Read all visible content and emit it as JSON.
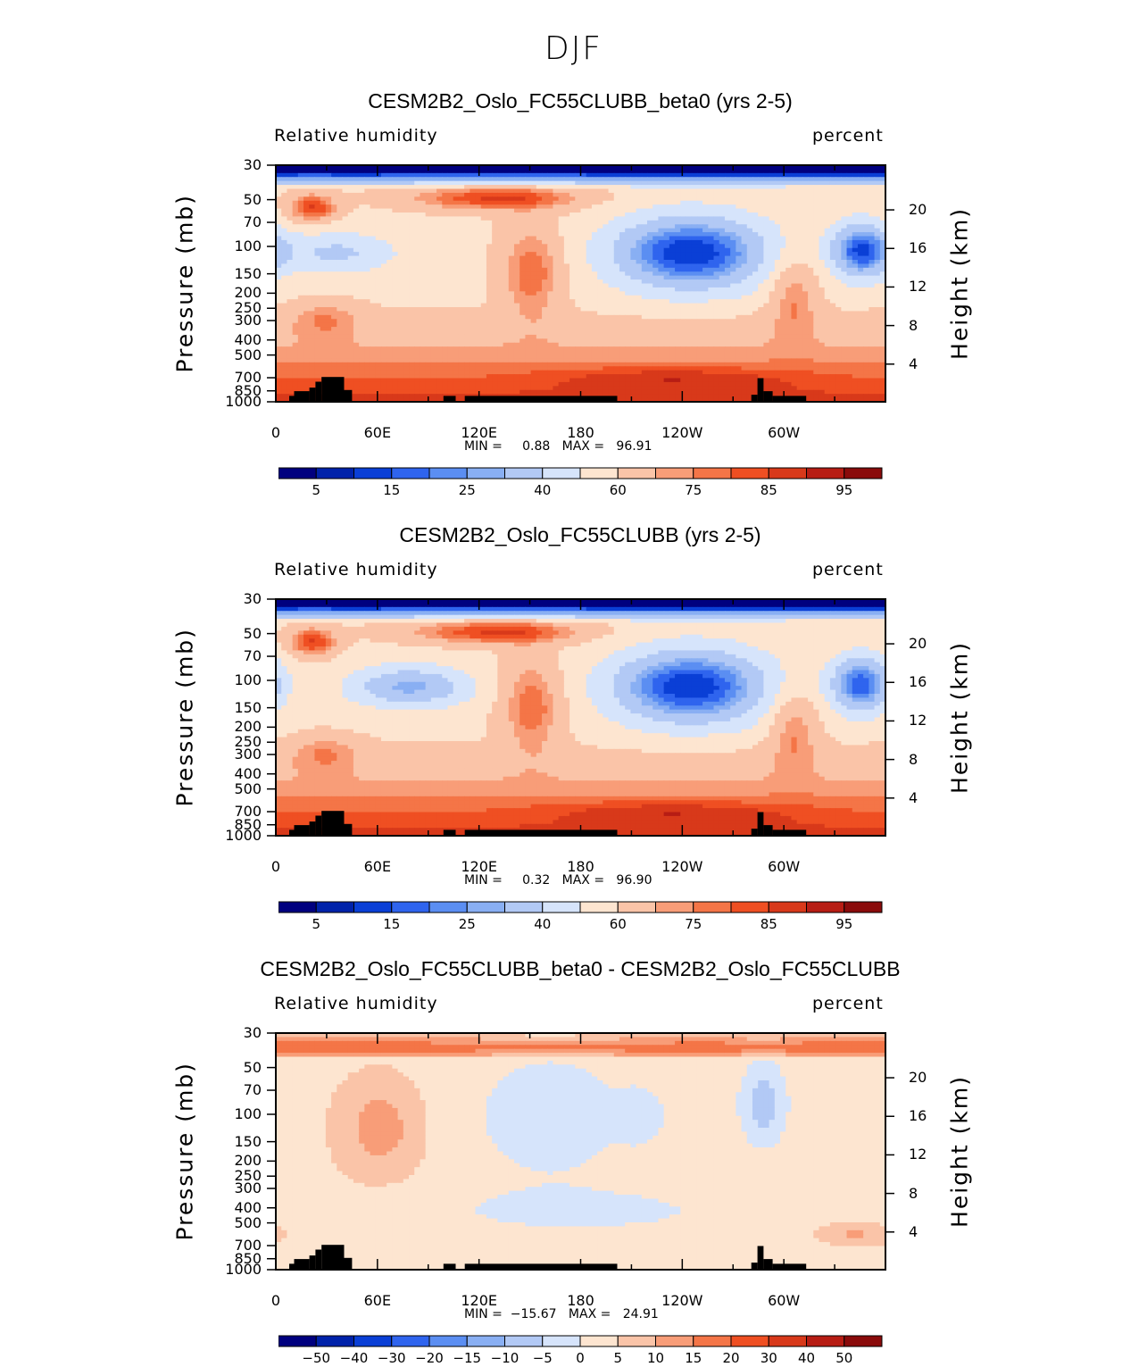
{
  "figure": {
    "title": "DJF"
  },
  "colors": {
    "blues": [
      "#00007f",
      "#0022aa",
      "#0a3fd6",
      "#2f64ee",
      "#5b8ef2",
      "#89aff3",
      "#b2c9f5",
      "#d6e4fb"
    ],
    "reds": [
      "#fde5d0",
      "#fac4a8",
      "#f89d78",
      "#f47547",
      "#ef4f22",
      "#d8391a",
      "#b71d14",
      "#8a0b0b"
    ],
    "topography": "#000000"
  },
  "chart_data": [
    {
      "type": "contour",
      "title": "CESM2B2_Oslo_FC55CLUBB_beta0 (yrs 2-5)",
      "left_label": "Relative humidity",
      "right_label": "percent",
      "ylabel": "Pressure (mb)",
      "y2label": "Height (km)",
      "pressure_levels": [
        "30",
        "50",
        "70",
        "100",
        "150",
        "200",
        "250",
        "300",
        "400",
        "500",
        "700",
        "850",
        "1000"
      ],
      "height_levels": [
        "20",
        "16",
        "12",
        "8",
        "4"
      ],
      "x_ticklabels": [
        "0",
        "60E",
        "120E",
        "180",
        "120W",
        "60W"
      ],
      "min_text": "MIN =     0.88   MAX =   96.91",
      "colorbar_labels": [
        "5",
        "15",
        "25",
        "40",
        "60",
        "75",
        "85",
        "95"
      ],
      "colorbar_levels": [
        5,
        10,
        15,
        20,
        25,
        30,
        40,
        50,
        60,
        70,
        75,
        80,
        85,
        90,
        95
      ],
      "min": 0.88,
      "max": 96.91
    },
    {
      "type": "contour",
      "title": "CESM2B2_Oslo_FC55CLUBB (yrs 2-5)",
      "left_label": "Relative humidity",
      "right_label": "percent",
      "ylabel": "Pressure (mb)",
      "y2label": "Height (km)",
      "pressure_levels": [
        "30",
        "50",
        "70",
        "100",
        "150",
        "200",
        "250",
        "300",
        "400",
        "500",
        "700",
        "850",
        "1000"
      ],
      "height_levels": [
        "20",
        "16",
        "12",
        "8",
        "4"
      ],
      "x_ticklabels": [
        "0",
        "60E",
        "120E",
        "180",
        "120W",
        "60W"
      ],
      "min_text": "MIN =     0.32   MAX =   96.90",
      "colorbar_labels": [
        "5",
        "15",
        "25",
        "40",
        "60",
        "75",
        "85",
        "95"
      ],
      "colorbar_levels": [
        5,
        10,
        15,
        20,
        25,
        30,
        40,
        50,
        60,
        70,
        75,
        80,
        85,
        90,
        95
      ],
      "min": 0.32,
      "max": 96.9
    },
    {
      "type": "contour",
      "title": "CESM2B2_Oslo_FC55CLUBB_beta0 - CESM2B2_Oslo_FC55CLUBB",
      "left_label": "Relative humidity",
      "right_label": "percent",
      "ylabel": "Pressure (mb)",
      "y2label": "Height (km)",
      "pressure_levels": [
        "30",
        "50",
        "70",
        "100",
        "150",
        "200",
        "250",
        "300",
        "400",
        "500",
        "700",
        "850",
        "1000"
      ],
      "height_levels": [
        "20",
        "16",
        "12",
        "8",
        "4"
      ],
      "x_ticklabels": [
        "0",
        "60E",
        "120E",
        "180",
        "120W",
        "60W"
      ],
      "min_text": "MIN =  −15.67   MAX =   24.91",
      "colorbar_labels": [
        "−50",
        "−40",
        "−30",
        "−20",
        "−15",
        "−10",
        "−5",
        "0",
        "5",
        "10",
        "15",
        "20",
        "30",
        "40",
        "50"
      ],
      "colorbar_levels": [
        -50,
        -40,
        -30,
        -20,
        -15,
        -10,
        -5,
        0,
        5,
        10,
        15,
        20,
        30,
        40,
        50
      ],
      "min": -15.67,
      "max": 24.91
    }
  ]
}
